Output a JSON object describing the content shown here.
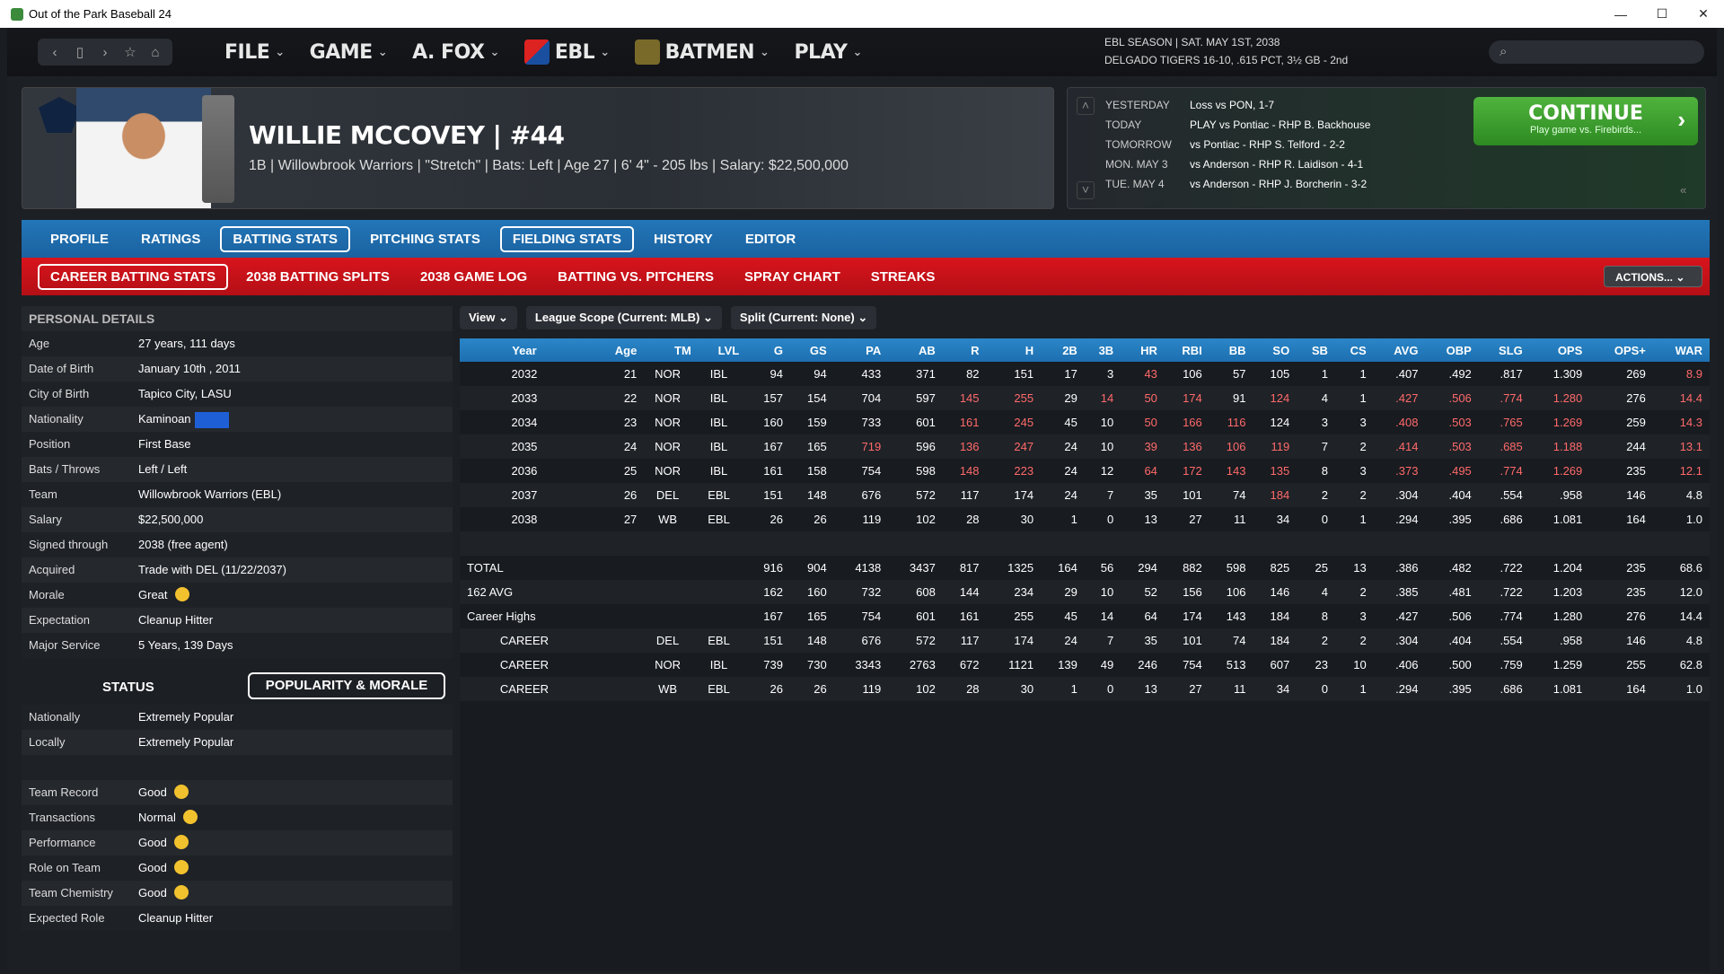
{
  "window": {
    "title": "Out of the Park Baseball 24",
    "minimize": "—",
    "maximize": "☐",
    "close": "✕"
  },
  "nav": {
    "menus": [
      {
        "label": "FILE"
      },
      {
        "label": "GAME"
      },
      {
        "label": "A. FOX"
      },
      {
        "label": "EBL"
      },
      {
        "label": "BATMEN"
      },
      {
        "label": "PLAY"
      }
    ],
    "season_line1": "EBL SEASON  |  SAT. MAY 1ST, 2038",
    "season_line2": "DELGADO TIGERS  16-10, .615 PCT, 3½ GB - 2nd",
    "search_placeholder": ""
  },
  "player": {
    "name": "WILLIE MCCOVEY  |  #44",
    "info": "1B | Willowbrook Warriors  |  \"Stretch\" | Bats: Left  |  Age 27  |  6' 4\" - 205 lbs  |  Salary: $22,500,000"
  },
  "schedule": {
    "rows": [
      {
        "day": "YESTERDAY",
        "text": "Loss vs PON, 1-7"
      },
      {
        "day": "TODAY",
        "text": "PLAY vs Pontiac - RHP B. Backhouse"
      },
      {
        "day": "TOMORROW",
        "text": "vs Pontiac - RHP S. Telford - 2-2"
      },
      {
        "day": "MON. MAY 3",
        "text": "vs Anderson - RHP R. Laidison - 4-1"
      },
      {
        "day": "TUE. MAY 4",
        "text": "vs Anderson - RHP J. Borcherin - 3-2"
      }
    ],
    "continue_label": "CONTINUE",
    "continue_sub": "Play game vs. Firebirds..."
  },
  "tabs_main": [
    {
      "label": "PROFILE",
      "active": false
    },
    {
      "label": "RATINGS",
      "active": false
    },
    {
      "label": "BATTING STATS",
      "active": true
    },
    {
      "label": "PITCHING STATS",
      "active": false
    },
    {
      "label": "FIELDING STATS",
      "active": true
    },
    {
      "label": "HISTORY",
      "active": false
    },
    {
      "label": "EDITOR",
      "active": false
    }
  ],
  "tabs_sub": [
    {
      "label": "CAREER BATTING STATS",
      "active": true
    },
    {
      "label": "2038 BATTING SPLITS",
      "active": false
    },
    {
      "label": "2038 GAME LOG",
      "active": false
    },
    {
      "label": "BATTING VS. PITCHERS",
      "active": false
    },
    {
      "label": "SPRAY CHART",
      "active": false
    },
    {
      "label": "STREAKS",
      "active": false
    }
  ],
  "actions_label": "ACTIONS...",
  "personal": {
    "title": "PERSONAL DETAILS",
    "rows": [
      {
        "k": "Age",
        "v": "27 years, 111 days"
      },
      {
        "k": "Date of Birth",
        "v": "January 10th , 2011"
      },
      {
        "k": "City of Birth",
        "v": "Tapico City, LASU"
      },
      {
        "k": "Nationality",
        "v": "Kaminoan"
      },
      {
        "k": "Position",
        "v": "First Base"
      },
      {
        "k": "Bats / Throws",
        "v": "Left / Left"
      },
      {
        "k": "Team",
        "v": "Willowbrook Warriors (EBL)"
      },
      {
        "k": "Salary",
        "v": "$22,500,000"
      },
      {
        "k": "Signed through",
        "v": "2038 (free agent)"
      },
      {
        "k": "Acquired",
        "v": "Trade with DEL (11/22/2037)"
      },
      {
        "k": "Morale",
        "v": "Great"
      },
      {
        "k": "Expectation",
        "v": "Cleanup Hitter"
      },
      {
        "k": "Major Service",
        "v": "5 Years, 139 Days"
      }
    ]
  },
  "status": {
    "label": "STATUS",
    "pop_button": "POPULARITY & MORALE",
    "rows": [
      {
        "k": "Nationally",
        "v": "Extremely Popular"
      },
      {
        "k": "Locally",
        "v": "Extremely Popular"
      },
      {
        "k": "",
        "v": ""
      },
      {
        "k": "Team Record",
        "v": "Good"
      },
      {
        "k": "Transactions",
        "v": "Normal"
      },
      {
        "k": "Performance",
        "v": "Good"
      },
      {
        "k": "Role on Team",
        "v": "Good"
      },
      {
        "k": "Team Chemistry",
        "v": "Good"
      },
      {
        "k": "Expected Role",
        "v": "Cleanup Hitter"
      }
    ]
  },
  "filters": [
    "View",
    "League Scope (Current: MLB)",
    "Split (Current: None)"
  ],
  "stats": {
    "columns": [
      "Year",
      "Age",
      "TM",
      "LVL",
      "G",
      "GS",
      "PA",
      "AB",
      "R",
      "H",
      "2B",
      "3B",
      "HR",
      "RBI",
      "BB",
      "SO",
      "SB",
      "CS",
      "AVG",
      "OBP",
      "SLG",
      "OPS",
      "OPS+",
      "WAR"
    ],
    "rows": [
      [
        "2032",
        "21",
        "NOR",
        "IBL",
        "94",
        "94",
        "433",
        "371",
        "82",
        "151",
        "17",
        "3",
        "43",
        "106",
        "57",
        "105",
        "1",
        "1",
        ".407",
        ".492",
        ".817",
        "1.309",
        "269",
        "8.9"
      ],
      [
        "2033",
        "22",
        "NOR",
        "IBL",
        "157",
        "154",
        "704",
        "597",
        "145",
        "255",
        "29",
        "14",
        "50",
        "174",
        "91",
        "124",
        "4",
        "1",
        ".427",
        ".506",
        ".774",
        "1.280",
        "276",
        "14.4"
      ],
      [
        "2034",
        "23",
        "NOR",
        "IBL",
        "160",
        "159",
        "733",
        "601",
        "161",
        "245",
        "45",
        "10",
        "50",
        "166",
        "116",
        "124",
        "3",
        "3",
        ".408",
        ".503",
        ".765",
        "1.269",
        "259",
        "14.3"
      ],
      [
        "2035",
        "24",
        "NOR",
        "IBL",
        "167",
        "165",
        "719",
        "596",
        "136",
        "247",
        "24",
        "10",
        "39",
        "136",
        "106",
        "119",
        "7",
        "2",
        ".414",
        ".503",
        ".685",
        "1.188",
        "244",
        "13.1"
      ],
      [
        "2036",
        "25",
        "NOR",
        "IBL",
        "161",
        "158",
        "754",
        "598",
        "148",
        "223",
        "24",
        "12",
        "64",
        "172",
        "143",
        "135",
        "8",
        "3",
        ".373",
        ".495",
        ".774",
        "1.269",
        "235",
        "12.1"
      ],
      [
        "2037",
        "26",
        "DEL",
        "EBL",
        "151",
        "148",
        "676",
        "572",
        "117",
        "174",
        "24",
        "7",
        "35",
        "101",
        "74",
        "184",
        "2",
        "2",
        ".304",
        ".404",
        ".554",
        ".958",
        "146",
        "4.8"
      ],
      [
        "2038",
        "27",
        "WB",
        "EBL",
        "26",
        "26",
        "119",
        "102",
        "28",
        "30",
        "1",
        "0",
        "13",
        "27",
        "11",
        "34",
        "0",
        "1",
        ".294",
        ".395",
        ".686",
        "1.081",
        "164",
        "1.0"
      ],
      [
        "",
        "",
        "",
        "",
        "",
        "",
        "",
        "",
        "",
        "",
        "",
        "",
        "",
        "",
        "",
        "",
        "",
        "",
        "",
        "",
        "",
        "",
        "",
        ""
      ],
      [
        "TOTAL",
        "",
        "",
        "",
        "916",
        "904",
        "4138",
        "3437",
        "817",
        "1325",
        "164",
        "56",
        "294",
        "882",
        "598",
        "825",
        "25",
        "13",
        ".386",
        ".482",
        ".722",
        "1.204",
        "235",
        "68.6"
      ],
      [
        "162 AVG",
        "",
        "",
        "",
        "162",
        "160",
        "732",
        "608",
        "144",
        "234",
        "29",
        "10",
        "52",
        "156",
        "106",
        "146",
        "4",
        "2",
        ".385",
        ".481",
        ".722",
        "1.203",
        "235",
        "12.0"
      ],
      [
        "Career Highs",
        "",
        "",
        "",
        "167",
        "165",
        "754",
        "601",
        "161",
        "255",
        "45",
        "14",
        "64",
        "174",
        "143",
        "184",
        "8",
        "3",
        ".427",
        ".506",
        ".774",
        "1.280",
        "276",
        "14.4"
      ],
      [
        "CAREER",
        "",
        "DEL",
        "EBL",
        "151",
        "148",
        "676",
        "572",
        "117",
        "174",
        "24",
        "7",
        "35",
        "101",
        "74",
        "184",
        "2",
        "2",
        ".304",
        ".404",
        ".554",
        ".958",
        "146",
        "4.8"
      ],
      [
        "CAREER",
        "",
        "NOR",
        "IBL",
        "739",
        "730",
        "3343",
        "2763",
        "672",
        "1121",
        "139",
        "49",
        "246",
        "754",
        "513",
        "607",
        "23",
        "10",
        ".406",
        ".500",
        ".759",
        "1.259",
        "255",
        "62.8"
      ],
      [
        "CAREER",
        "",
        "WB",
        "EBL",
        "26",
        "26",
        "119",
        "102",
        "28",
        "30",
        "1",
        "0",
        "13",
        "27",
        "11",
        "34",
        "0",
        "1",
        ".294",
        ".395",
        ".686",
        "1.081",
        "164",
        "1.0"
      ]
    ],
    "red_cells": [
      [
        0,
        12
      ],
      [
        0,
        23
      ],
      [
        1,
        8
      ],
      [
        1,
        9
      ],
      [
        1,
        11
      ],
      [
        1,
        12
      ],
      [
        1,
        13
      ],
      [
        1,
        15
      ],
      [
        1,
        18
      ],
      [
        1,
        19
      ],
      [
        1,
        20
      ],
      [
        1,
        21
      ],
      [
        1,
        23
      ],
      [
        2,
        8
      ],
      [
        2,
        9
      ],
      [
        2,
        12
      ],
      [
        2,
        13
      ],
      [
        2,
        14
      ],
      [
        2,
        18
      ],
      [
        2,
        19
      ],
      [
        2,
        20
      ],
      [
        2,
        21
      ],
      [
        2,
        23
      ],
      [
        3,
        6
      ],
      [
        3,
        8
      ],
      [
        3,
        9
      ],
      [
        3,
        12
      ],
      [
        3,
        13
      ],
      [
        3,
        14
      ],
      [
        3,
        15
      ],
      [
        3,
        18
      ],
      [
        3,
        19
      ],
      [
        3,
        20
      ],
      [
        3,
        21
      ],
      [
        3,
        23
      ],
      [
        4,
        8
      ],
      [
        4,
        9
      ],
      [
        4,
        12
      ],
      [
        4,
        13
      ],
      [
        4,
        14
      ],
      [
        4,
        15
      ],
      [
        4,
        18
      ],
      [
        4,
        19
      ],
      [
        4,
        20
      ],
      [
        4,
        21
      ],
      [
        4,
        23
      ],
      [
        5,
        15
      ]
    ]
  }
}
